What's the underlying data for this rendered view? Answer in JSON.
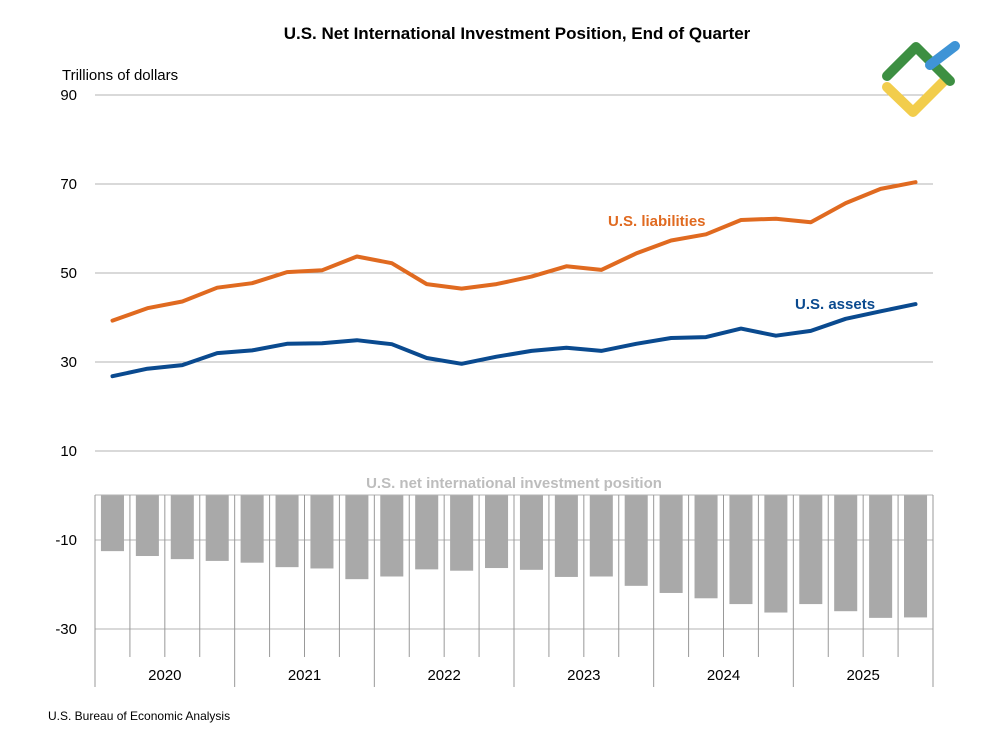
{
  "chart_data": {
    "type": "line",
    "title": "U.S. Net International Investment Position, End of Quarter",
    "ylabel": "Trillions of dollars",
    "ylim": [
      -30,
      90
    ],
    "yticks": [
      90,
      70,
      50,
      30,
      10,
      -10,
      -30
    ],
    "years": [
      "2020",
      "2021",
      "2022",
      "2023",
      "2024",
      "2025"
    ],
    "quarters": [
      "2020Q1",
      "2020Q2",
      "2020Q3",
      "2020Q4",
      "2021Q1",
      "2021Q2",
      "2021Q3",
      "2021Q4",
      "2022Q1",
      "2022Q2",
      "2022Q3",
      "2022Q4",
      "2023Q1",
      "2023Q2",
      "2023Q3",
      "2023Q4",
      "2024Q1",
      "2024Q2",
      "2024Q3",
      "2024Q4",
      "2025Q1",
      "2025Q2",
      "2025Q3",
      "2025Q4"
    ],
    "series": [
      {
        "name": "U.S. liabilities",
        "type": "line",
        "color": "#e06a20",
        "values": [
          39.3,
          42.1,
          43.6,
          46.7,
          47.7,
          50.2,
          50.6,
          53.7,
          52.2,
          47.5,
          46.5,
          47.5,
          49.2,
          51.5,
          50.7,
          54.4,
          57.3,
          58.7,
          61.9,
          62.2,
          61.4,
          65.7,
          68.9,
          70.4
        ]
      },
      {
        "name": "U.S. assets",
        "type": "line",
        "color": "#0a4a8f",
        "values": [
          26.8,
          28.5,
          29.3,
          32.0,
          32.6,
          34.1,
          34.2,
          34.9,
          34.0,
          30.9,
          29.6,
          31.2,
          32.5,
          33.2,
          32.5,
          34.1,
          35.4,
          35.6,
          37.5,
          35.9,
          37.0,
          39.7,
          41.4,
          43.0
        ]
      },
      {
        "name": "U.S. net international investment position",
        "type": "bar",
        "color": "#a9a9a9",
        "values": [
          -12.5,
          -13.6,
          -14.3,
          -14.7,
          -15.1,
          -16.1,
          -16.4,
          -18.8,
          -18.2,
          -16.6,
          -16.9,
          -16.3,
          -16.7,
          -18.3,
          -18.2,
          -20.3,
          -21.9,
          -23.1,
          -24.4,
          -26.3,
          -24.4,
          -26.0,
          -27.5,
          -27.4
        ]
      }
    ]
  },
  "source": "U.S. Bureau of Economic Analysis"
}
